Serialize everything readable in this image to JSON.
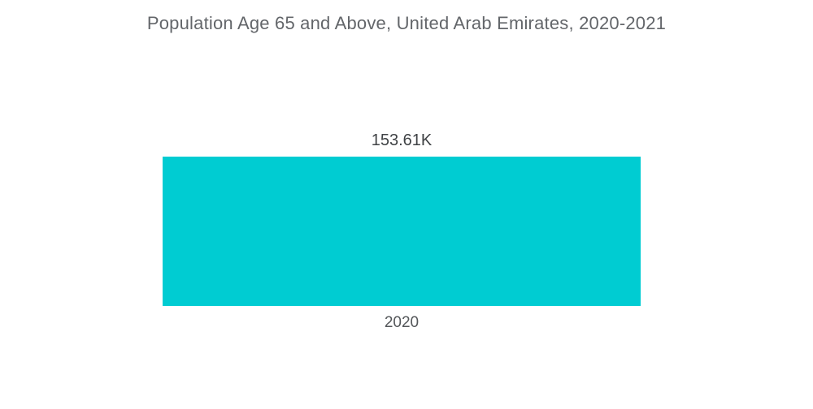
{
  "chart_data": {
    "type": "bar",
    "title": "Population Age 65 and Above, United Arab Emirates, 2020-2021",
    "categories": [
      "2020"
    ],
    "values": [
      153610
    ],
    "value_labels": [
      "153.61K"
    ],
    "xlabel": "",
    "ylabel": "",
    "ylim": [
      0,
      160000
    ],
    "grid": false,
    "legend": "none",
    "orientation": "vertical",
    "bar_count": 1
  },
  "colors": {
    "background": "#ffffff",
    "bar_fill": "#00CCD2",
    "title_text": "#63666A",
    "value_label_text": "#3F4245",
    "tick_label_text": "#54575A"
  }
}
